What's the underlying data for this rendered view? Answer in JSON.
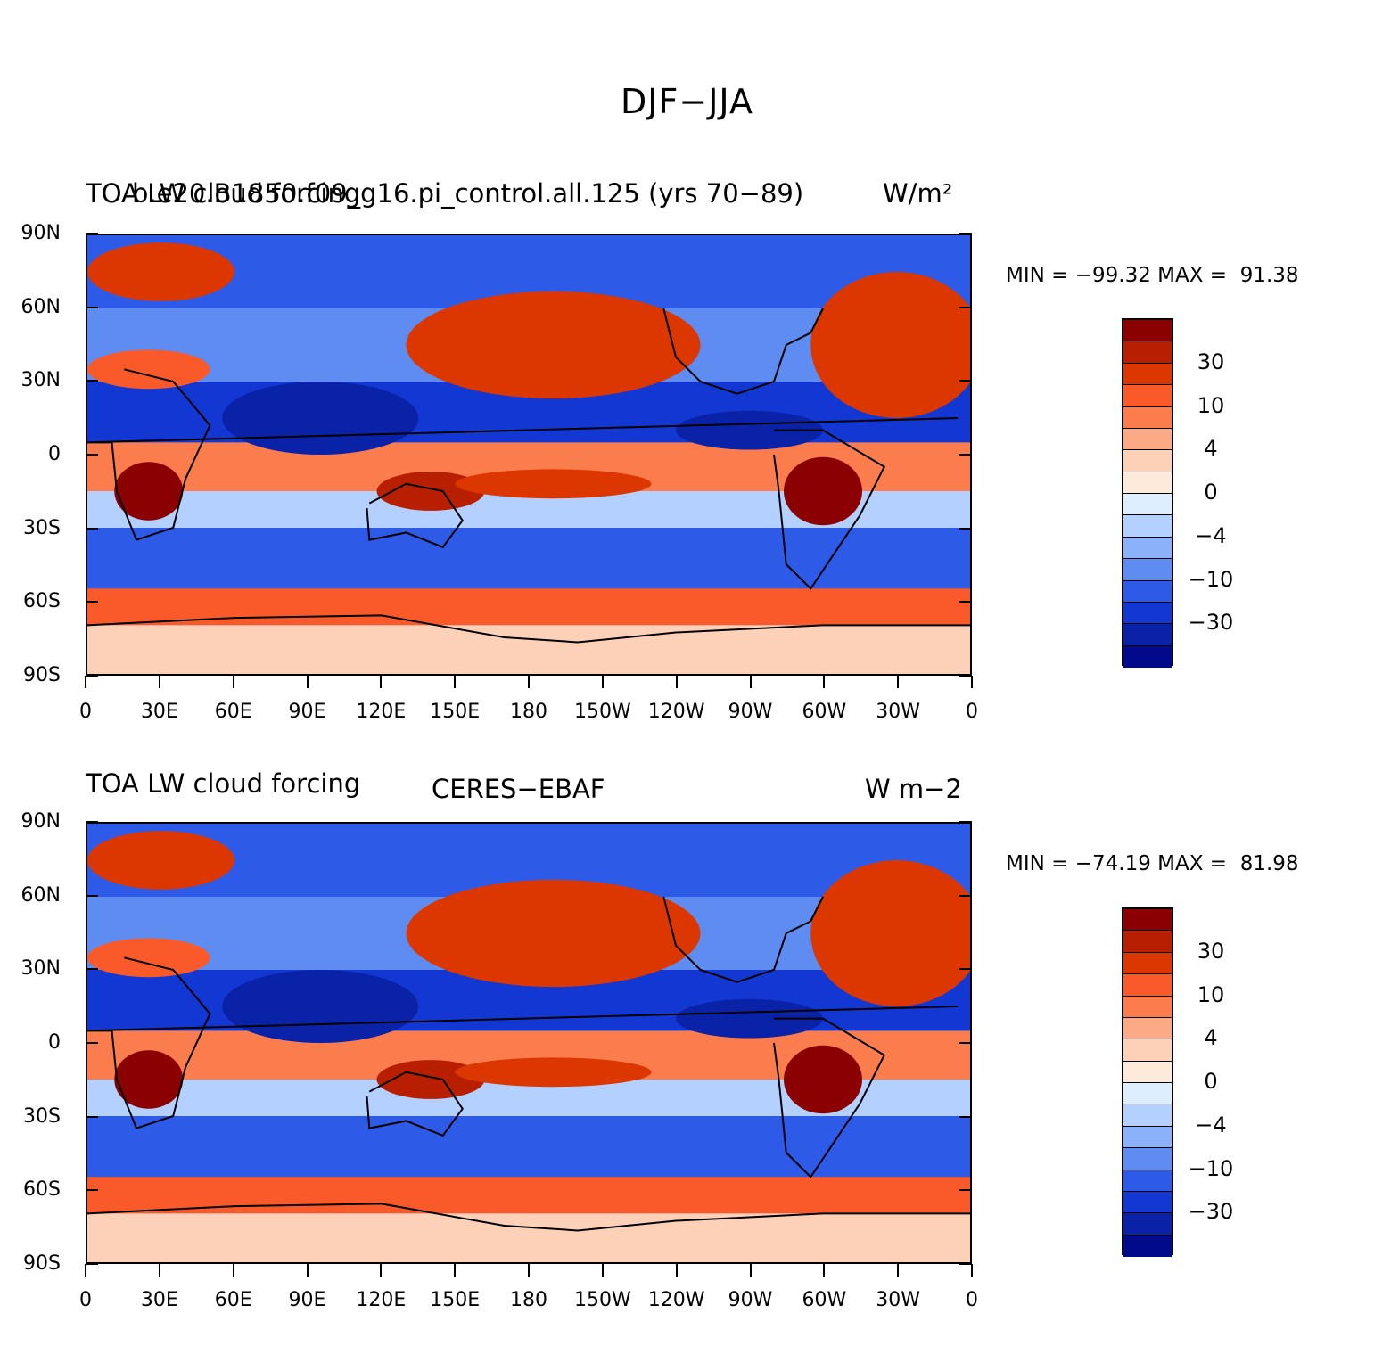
{
  "figure": {
    "title": "DJF−JJA"
  },
  "colorbar": {
    "colors": [
      "#8b0000",
      "#b81f00",
      "#dc3700",
      "#fa5a2a",
      "#fb7d4d",
      "#fca985",
      "#fdd0b8",
      "#feeadb",
      "#dceeff",
      "#b4d0ff",
      "#8cb1fb",
      "#5f8cf0",
      "#2e5ae8",
      "#1337d2",
      "#0a22a8",
      "#000a8a"
    ],
    "labels": [
      "30",
      "10",
      "4",
      "0",
      "−4",
      "−10",
      "−30"
    ]
  },
  "axes": {
    "y_labels": [
      "90N",
      "60N",
      "30N",
      "0",
      "30S",
      "60S",
      "90S"
    ],
    "x_labels": [
      "0",
      "30E",
      "60E",
      "90E",
      "120E",
      "150E",
      "180",
      "150W",
      "120W",
      "90W",
      "60W",
      "30W",
      "0"
    ]
  },
  "panels": [
    {
      "left_title": "TOA LW cloud forcing",
      "center_title": "b.e20.B1850.f09_g16.pi_control.all.125 (yrs 70−89)",
      "units": "W/m²",
      "stats": "MIN = −99.32 MAX =  91.38"
    },
    {
      "left_title": "TOA LW cloud forcing",
      "center_title": "CERES−EBAF",
      "units": "W m−2",
      "stats": "MIN = −74.19 MAX =  81.98"
    }
  ],
  "chart_data": {
    "type": "heatmap",
    "title": "DJF−JJA",
    "projection": "cylindrical equidistant, 0 to 360 longitude",
    "xlim": [
      0,
      360
    ],
    "ylim": [
      -90,
      90
    ],
    "contour_levels": [
      -50,
      -40,
      -30,
      -20,
      -10,
      -7,
      -4,
      -2,
      0,
      2,
      4,
      7,
      10,
      20,
      30,
      40,
      50
    ],
    "colorbar_labels": [
      "30",
      "10",
      "4",
      "0",
      "−4",
      "−10",
      "−30"
    ],
    "panels": [
      {
        "center_title": "b.e20.B1850.f09_g16.pi_control.all.125 (yrs 70−89)",
        "variable": "TOA LW cloud forcing",
        "units": "W/m²",
        "min": -99.32,
        "max": 91.38
      },
      {
        "center_title": "CERES−EBAF",
        "variable": "TOA LW cloud forcing",
        "units": "W m−2",
        "min": -74.19,
        "max": 81.98
      }
    ]
  }
}
